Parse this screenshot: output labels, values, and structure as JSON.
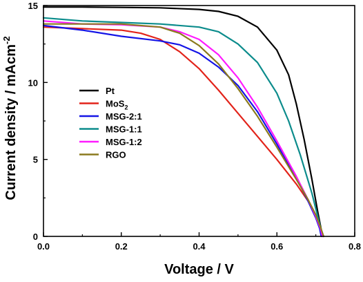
{
  "chart_data": {
    "type": "line",
    "xlabel": "Voltage / V",
    "ylabel": {
      "main": "Current density / mAcm",
      "sup": "-2"
    },
    "xlim": [
      0.0,
      0.8
    ],
    "ylim": [
      0,
      15
    ],
    "xticks": [
      0.0,
      0.2,
      0.4,
      0.6,
      0.8
    ],
    "xtick_labels": [
      "0.0",
      "0.2",
      "0.4",
      "0.6",
      "0.8"
    ],
    "yticks": [
      0,
      5,
      10,
      15
    ],
    "ytick_labels": [
      "0",
      "5",
      "10",
      "15"
    ],
    "grid": false,
    "legend_position": "center-left",
    "series": [
      {
        "name": "Pt",
        "label": {
          "main": "Pt",
          "sub": ""
        },
        "color": "#000000",
        "points": [
          [
            0.0,
            14.9
          ],
          [
            0.1,
            14.9
          ],
          [
            0.2,
            14.88
          ],
          [
            0.3,
            14.85
          ],
          [
            0.4,
            14.75
          ],
          [
            0.45,
            14.62
          ],
          [
            0.5,
            14.3
          ],
          [
            0.55,
            13.6
          ],
          [
            0.6,
            12.1
          ],
          [
            0.63,
            10.5
          ],
          [
            0.65,
            8.6
          ],
          [
            0.67,
            6.3
          ],
          [
            0.69,
            3.7
          ],
          [
            0.705,
            1.6
          ],
          [
            0.715,
            0.3
          ],
          [
            0.72,
            0.0
          ]
        ]
      },
      {
        "name": "MoS2",
        "label": {
          "main": "MoS",
          "sub": "2"
        },
        "color": "#e2231a",
        "points": [
          [
            0.0,
            13.6
          ],
          [
            0.1,
            13.5
          ],
          [
            0.2,
            13.4
          ],
          [
            0.25,
            13.2
          ],
          [
            0.3,
            12.8
          ],
          [
            0.35,
            12.0
          ],
          [
            0.4,
            10.9
          ],
          [
            0.45,
            9.5
          ],
          [
            0.5,
            8.0
          ],
          [
            0.55,
            6.5
          ],
          [
            0.6,
            5.0
          ],
          [
            0.65,
            3.4
          ],
          [
            0.68,
            2.3
          ],
          [
            0.7,
            1.4
          ],
          [
            0.712,
            0.5
          ],
          [
            0.718,
            0.0
          ]
        ]
      },
      {
        "name": "MSG-2:1",
        "label": {
          "main": "MSG-2:1",
          "sub": ""
        },
        "color": "#1414e6",
        "points": [
          [
            0.0,
            13.7
          ],
          [
            0.1,
            13.4
          ],
          [
            0.2,
            13.0
          ],
          [
            0.3,
            12.7
          ],
          [
            0.35,
            12.45
          ],
          [
            0.4,
            11.9
          ],
          [
            0.45,
            11.0
          ],
          [
            0.5,
            9.8
          ],
          [
            0.55,
            8.1
          ],
          [
            0.6,
            6.0
          ],
          [
            0.65,
            3.8
          ],
          [
            0.68,
            2.3
          ],
          [
            0.7,
            1.2
          ],
          [
            0.71,
            0.5
          ],
          [
            0.714,
            0.0
          ]
        ]
      },
      {
        "name": "MSG-1:1",
        "label": {
          "main": "MSG-1:1",
          "sub": ""
        },
        "color": "#0c8c8c",
        "points": [
          [
            0.0,
            14.2
          ],
          [
            0.1,
            14.0
          ],
          [
            0.2,
            13.9
          ],
          [
            0.3,
            13.8
          ],
          [
            0.4,
            13.6
          ],
          [
            0.45,
            13.3
          ],
          [
            0.5,
            12.5
          ],
          [
            0.55,
            11.3
          ],
          [
            0.6,
            9.3
          ],
          [
            0.63,
            7.5
          ],
          [
            0.66,
            5.3
          ],
          [
            0.69,
            2.8
          ],
          [
            0.705,
            1.3
          ],
          [
            0.715,
            0.3
          ],
          [
            0.72,
            0.0
          ]
        ]
      },
      {
        "name": "MSG-1:2",
        "label": {
          "main": "MSG-1:2",
          "sub": ""
        },
        "color": "#ff1aff",
        "points": [
          [
            0.0,
            14.0
          ],
          [
            0.1,
            13.8
          ],
          [
            0.2,
            13.75
          ],
          [
            0.3,
            13.6
          ],
          [
            0.35,
            13.3
          ],
          [
            0.4,
            12.8
          ],
          [
            0.45,
            11.8
          ],
          [
            0.5,
            10.3
          ],
          [
            0.55,
            8.4
          ],
          [
            0.6,
            6.2
          ],
          [
            0.65,
            3.9
          ],
          [
            0.68,
            2.4
          ],
          [
            0.7,
            1.3
          ],
          [
            0.712,
            0.5
          ],
          [
            0.717,
            0.0
          ]
        ]
      },
      {
        "name": "RGO",
        "label": {
          "main": "RGO",
          "sub": ""
        },
        "color": "#8b7a1e",
        "points": [
          [
            0.0,
            13.8
          ],
          [
            0.1,
            13.8
          ],
          [
            0.2,
            13.8
          ],
          [
            0.3,
            13.6
          ],
          [
            0.35,
            13.2
          ],
          [
            0.4,
            12.4
          ],
          [
            0.45,
            11.2
          ],
          [
            0.5,
            9.6
          ],
          [
            0.55,
            7.8
          ],
          [
            0.6,
            5.8
          ],
          [
            0.65,
            3.7
          ],
          [
            0.68,
            2.4
          ],
          [
            0.7,
            1.4
          ],
          [
            0.712,
            0.6
          ],
          [
            0.72,
            0.0
          ]
        ]
      }
    ]
  }
}
